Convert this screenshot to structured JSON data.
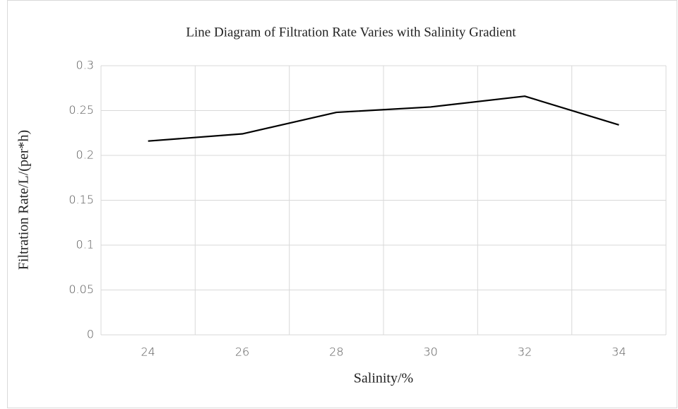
{
  "chart_data": {
    "type": "line",
    "title": "Line Diagram of Filtration Rate Varies with Salinity Gradient",
    "x_label": "Salinity/%",
    "y_label": "Filtration Rate/L/(per*h)",
    "categories": [
      "24",
      "26",
      "28",
      "30",
      "32",
      "34"
    ],
    "series": [
      {
        "name": "Filtration Rate",
        "color": "#000000",
        "values": [
          0.216,
          0.224,
          0.248,
          0.254,
          0.266,
          0.234
        ]
      }
    ],
    "ylim": [
      0,
      0.3
    ],
    "yticks": [
      0,
      0.05,
      0.1,
      0.15,
      0.2,
      0.25,
      0.3
    ],
    "grid": true
  }
}
